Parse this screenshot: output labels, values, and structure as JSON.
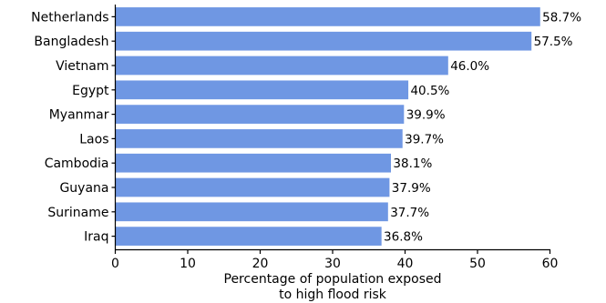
{
  "chart_data": {
    "type": "bar",
    "orientation": "horizontal",
    "categories": [
      "Netherlands",
      "Bangladesh",
      "Vietnam",
      "Egypt",
      "Myanmar",
      "Laos",
      "Cambodia",
      "Guyana",
      "Suriname",
      "Iraq"
    ],
    "values": [
      58.7,
      57.5,
      46.0,
      40.5,
      39.9,
      39.7,
      38.1,
      37.9,
      37.7,
      36.8
    ],
    "value_labels": [
      "58.7%",
      "57.5%",
      "46.0%",
      "40.5%",
      "39.9%",
      "39.7%",
      "38.1%",
      "37.9%",
      "37.7%",
      "36.8%"
    ],
    "xlabel_lines": [
      "Percentage of population exposed",
      "to high flood risk"
    ],
    "xlim": [
      0,
      60
    ],
    "xticks": [
      0,
      10,
      20,
      30,
      40,
      50,
      60
    ],
    "grid": false,
    "bar_color": "#6f97e3",
    "bar_edge_color": "#ffffff"
  }
}
